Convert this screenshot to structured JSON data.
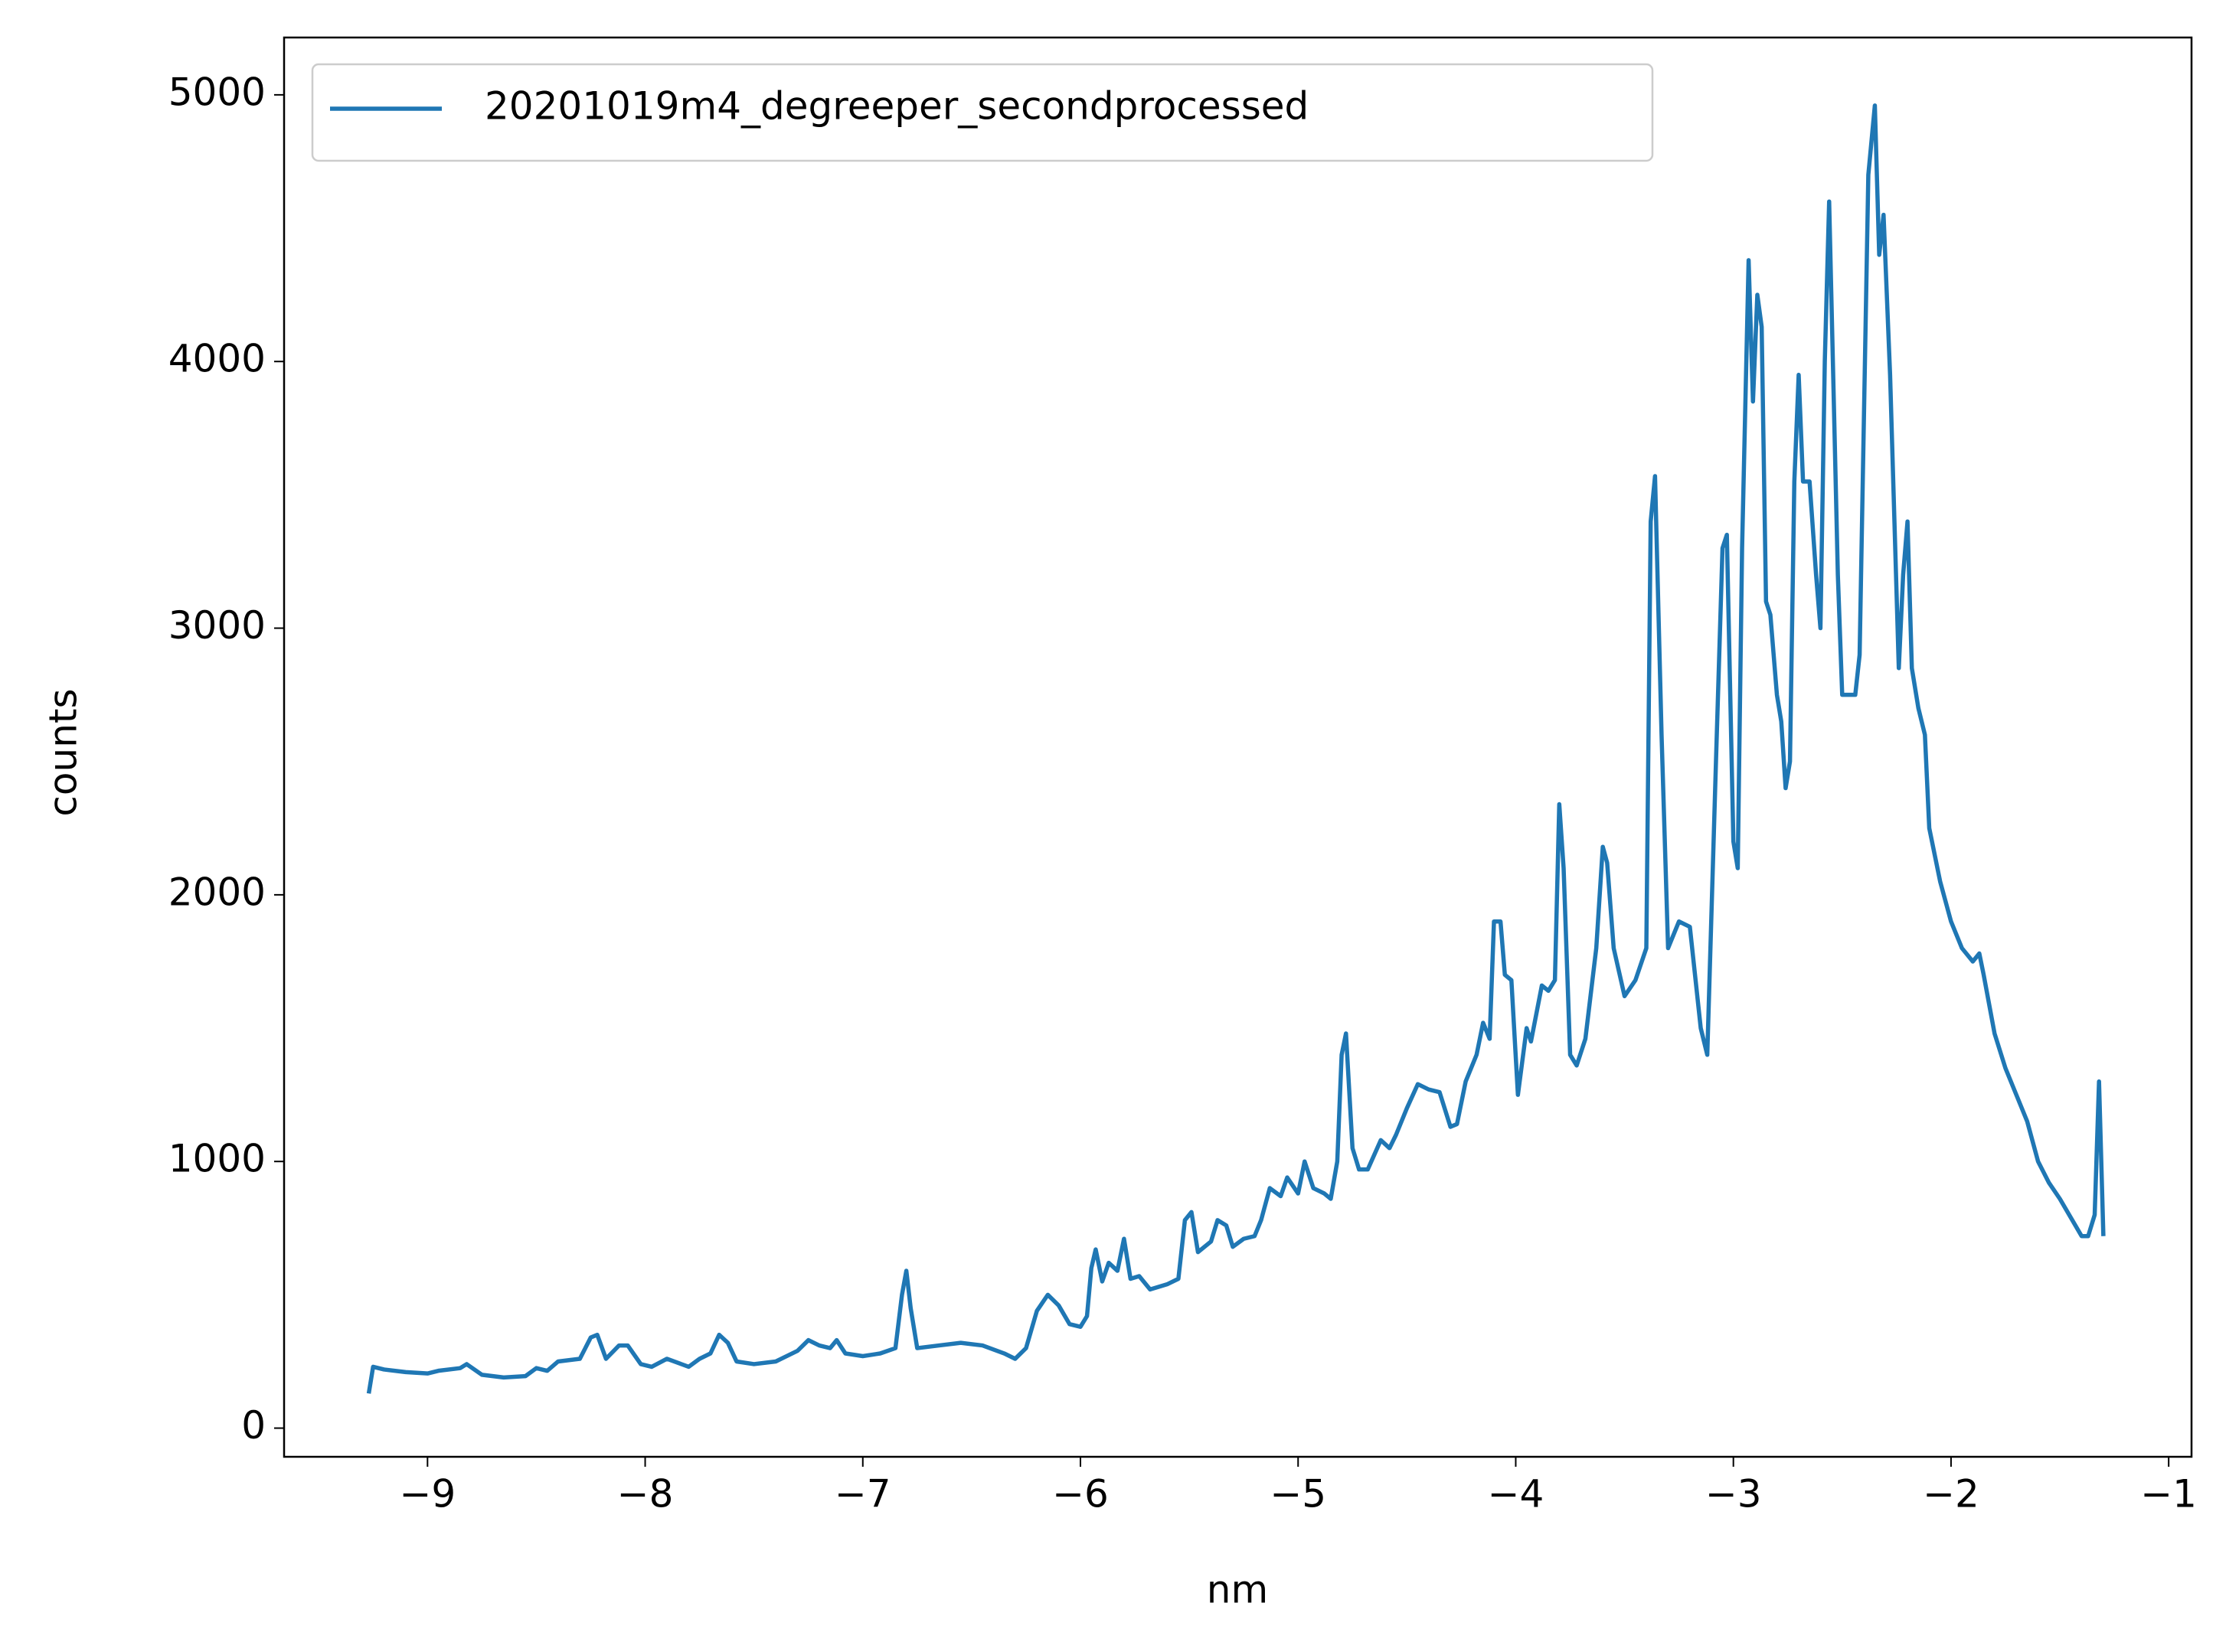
{
  "chart_data": {
    "type": "line",
    "x_label": "nm",
    "y_label": "counts",
    "x": [
      -9.27,
      -9.25,
      -9.2,
      -9.1,
      -9.0,
      -8.95,
      -8.85,
      -8.82,
      -8.75,
      -8.65,
      -8.55,
      -8.5,
      -8.45,
      -8.4,
      -8.3,
      -8.25,
      -8.22,
      -8.18,
      -8.12,
      -8.08,
      -8.02,
      -7.97,
      -7.9,
      -7.85,
      -7.8,
      -7.75,
      -7.7,
      -7.66,
      -7.62,
      -7.58,
      -7.5,
      -7.4,
      -7.3,
      -7.25,
      -7.2,
      -7.15,
      -7.12,
      -7.08,
      -7.0,
      -6.92,
      -6.85,
      -6.82,
      -6.8,
      -6.78,
      -6.75,
      -6.65,
      -6.55,
      -6.45,
      -6.35,
      -6.3,
      -6.25,
      -6.2,
      -6.15,
      -6.1,
      -6.05,
      -6.0,
      -5.97,
      -5.95,
      -5.93,
      -5.9,
      -5.87,
      -5.83,
      -5.8,
      -5.77,
      -5.73,
      -5.68,
      -5.6,
      -5.55,
      -5.52,
      -5.49,
      -5.46,
      -5.4,
      -5.37,
      -5.33,
      -5.3,
      -5.25,
      -5.2,
      -5.17,
      -5.13,
      -5.08,
      -5.05,
      -5.0,
      -4.97,
      -4.93,
      -4.88,
      -4.85,
      -4.82,
      -4.8,
      -4.78,
      -4.75,
      -4.72,
      -4.68,
      -4.62,
      -4.58,
      -4.55,
      -4.5,
      -4.45,
      -4.4,
      -4.35,
      -4.3,
      -4.27,
      -4.23,
      -4.18,
      -4.15,
      -4.12,
      -4.1,
      -4.07,
      -4.05,
      -4.02,
      -3.99,
      -3.95,
      -3.93,
      -3.88,
      -3.85,
      -3.82,
      -3.8,
      -3.78,
      -3.75,
      -3.72,
      -3.68,
      -3.63,
      -3.6,
      -3.58,
      -3.55,
      -3.5,
      -3.45,
      -3.4,
      -3.38,
      -3.36,
      -3.33,
      -3.3,
      -3.25,
      -3.2,
      -3.15,
      -3.12,
      -3.08,
      -3.05,
      -3.03,
      -3.0,
      -2.98,
      -2.96,
      -2.93,
      -2.91,
      -2.89,
      -2.87,
      -2.85,
      -2.83,
      -2.8,
      -2.78,
      -2.76,
      -2.74,
      -2.72,
      -2.7,
      -2.68,
      -2.65,
      -2.62,
      -2.6,
      -2.58,
      -2.56,
      -2.54,
      -2.52,
      -2.5,
      -2.47,
      -2.44,
      -2.42,
      -2.38,
      -2.35,
      -2.33,
      -2.31,
      -2.28,
      -2.26,
      -2.24,
      -2.22,
      -2.2,
      -2.18,
      -2.15,
      -2.12,
      -2.1,
      -2.05,
      -2.0,
      -1.95,
      -1.9,
      -1.87,
      -1.85,
      -1.8,
      -1.75,
      -1.7,
      -1.65,
      -1.6,
      -1.55,
      -1.5,
      -1.45,
      -1.4,
      -1.37,
      -1.34,
      -1.32,
      -1.3
    ],
    "series": [
      {
        "name": "20201019m4_degreeper_secondprocessed",
        "color": "#1f77b4",
        "values": [
          130,
          230,
          220,
          210,
          205,
          215,
          225,
          240,
          200,
          190,
          195,
          225,
          215,
          250,
          260,
          340,
          350,
          260,
          310,
          310,
          240,
          230,
          260,
          245,
          230,
          260,
          280,
          350,
          320,
          250,
          240,
          250,
          290,
          330,
          310,
          300,
          330,
          280,
          270,
          280,
          300,
          500,
          590,
          450,
          300,
          310,
          320,
          310,
          280,
          260,
          300,
          440,
          500,
          460,
          390,
          380,
          420,
          600,
          670,
          550,
          620,
          590,
          710,
          560,
          570,
          520,
          540,
          560,
          780,
          810,
          660,
          700,
          780,
          760,
          680,
          710,
          720,
          780,
          900,
          870,
          940,
          880,
          1000,
          900,
          880,
          860,
          1000,
          1400,
          1480,
          1050,
          970,
          970,
          1080,
          1050,
          1100,
          1200,
          1290,
          1270,
          1260,
          1130,
          1140,
          1300,
          1400,
          1520,
          1460,
          1900,
          1900,
          1700,
          1680,
          1250,
          1500,
          1450,
          1660,
          1640,
          1680,
          2340,
          2100,
          1400,
          1360,
          1460,
          1800,
          2180,
          2120,
          1800,
          1620,
          1680,
          1800,
          3400,
          3570,
          2600,
          1800,
          1900,
          1880,
          1500,
          1400,
          2500,
          3300,
          3350,
          2200,
          2100,
          3300,
          4380,
          3850,
          4250,
          4130,
          3100,
          3050,
          2750,
          2650,
          2400,
          2500,
          3550,
          3950,
          3550,
          3550,
          3200,
          3000,
          4000,
          4600,
          3900,
          3200,
          2750,
          2750,
          2750,
          2900,
          4700,
          4960,
          4400,
          4550,
          3950,
          3400,
          2850,
          3200,
          3400,
          2850,
          2700,
          2600,
          2250,
          2050,
          1900,
          1800,
          1750,
          1780,
          1700,
          1480,
          1350,
          1250,
          1150,
          1000,
          920,
          860,
          790,
          720,
          720,
          800,
          1300,
          720
        ]
      }
    ],
    "xlim": [
      -9.659,
      -0.895
    ],
    "ylim": [
      -107.5,
      5215
    ],
    "xticks": [
      {
        "value": -9,
        "label": "−9"
      },
      {
        "value": -8,
        "label": "−8"
      },
      {
        "value": -7,
        "label": "−7"
      },
      {
        "value": -6,
        "label": "−6"
      },
      {
        "value": -5,
        "label": "−5"
      },
      {
        "value": -4,
        "label": "−4"
      },
      {
        "value": -3,
        "label": "−3"
      },
      {
        "value": -2,
        "label": "−2"
      },
      {
        "value": -1,
        "label": "−1"
      }
    ],
    "yticks": [
      0,
      1000,
      2000,
      3000,
      4000,
      5000
    ],
    "grid": false,
    "legend": "upper left"
  }
}
